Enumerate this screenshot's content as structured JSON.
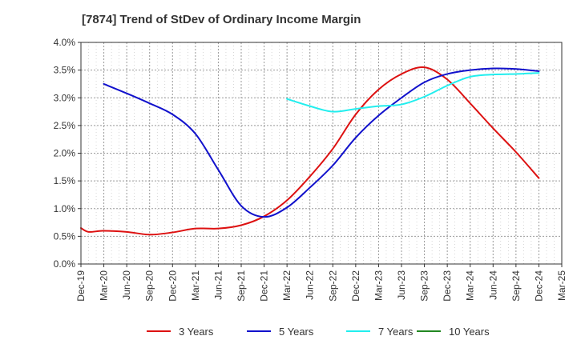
{
  "chart_data": {
    "type": "line",
    "title": "[7874]  Trend of StDev of Ordinary Income Margin",
    "xlabel": "",
    "ylabel": "",
    "ylim": [
      0,
      4.0
    ],
    "y_ticks": [
      "0.0%",
      "0.5%",
      "1.0%",
      "1.5%",
      "2.0%",
      "2.5%",
      "3.0%",
      "3.5%",
      "4.0%"
    ],
    "x_ticks": [
      "Dec-19",
      "Mar-20",
      "Jun-20",
      "Sep-20",
      "Dec-20",
      "Mar-21",
      "Jun-21",
      "Sep-21",
      "Dec-21",
      "Mar-22",
      "Jun-22",
      "Sep-22",
      "Dec-22",
      "Mar-23",
      "Jun-23",
      "Sep-23",
      "Dec-23",
      "Mar-24",
      "Jun-24",
      "Sep-24",
      "Dec-24",
      "Mar-25"
    ],
    "grid": true,
    "legend_position": "bottom",
    "series": [
      {
        "name": "3 Years",
        "color": "#dd1111",
        "points": [
          [
            "Dec-19",
            0.65
          ],
          [
            "Jan-20",
            0.58
          ],
          [
            "Mar-20",
            0.6
          ],
          [
            "Jun-20",
            0.58
          ],
          [
            "Sep-20",
            0.53
          ],
          [
            "Dec-20",
            0.57
          ],
          [
            "Mar-21",
            0.64
          ],
          [
            "Jun-21",
            0.64
          ],
          [
            "Sep-21",
            0.7
          ],
          [
            "Dec-21",
            0.86
          ],
          [
            "Mar-22",
            1.15
          ],
          [
            "Jun-22",
            1.58
          ],
          [
            "Sep-22",
            2.08
          ],
          [
            "Dec-22",
            2.7
          ],
          [
            "Mar-23",
            3.15
          ],
          [
            "Jun-23",
            3.43
          ],
          [
            "Sep-23",
            3.55
          ],
          [
            "Dec-23",
            3.33
          ],
          [
            "Mar-24",
            2.9
          ],
          [
            "Jun-24",
            2.45
          ],
          [
            "Sep-24",
            2.02
          ],
          [
            "Dec-24",
            1.55
          ]
        ]
      },
      {
        "name": "5 Years",
        "color": "#1111cc",
        "points": [
          [
            "Mar-20",
            3.25
          ],
          [
            "Jun-20",
            3.08
          ],
          [
            "Sep-20",
            2.9
          ],
          [
            "Dec-20",
            2.7
          ],
          [
            "Mar-21",
            2.35
          ],
          [
            "Jun-21",
            1.7
          ],
          [
            "Sep-21",
            1.05
          ],
          [
            "Dec-21",
            0.85
          ],
          [
            "Mar-22",
            1.02
          ],
          [
            "Jun-22",
            1.38
          ],
          [
            "Sep-22",
            1.78
          ],
          [
            "Dec-22",
            2.28
          ],
          [
            "Mar-23",
            2.68
          ],
          [
            "Jun-23",
            3.0
          ],
          [
            "Sep-23",
            3.28
          ],
          [
            "Dec-23",
            3.43
          ],
          [
            "Mar-24",
            3.5
          ],
          [
            "Jun-24",
            3.53
          ],
          [
            "Sep-24",
            3.52
          ],
          [
            "Dec-24",
            3.48
          ]
        ]
      },
      {
        "name": "7 Years",
        "color": "#22eeee",
        "points": [
          [
            "Mar-22",
            2.98
          ],
          [
            "Jun-22",
            2.85
          ],
          [
            "Sep-22",
            2.75
          ],
          [
            "Dec-22",
            2.8
          ],
          [
            "Mar-23",
            2.85
          ],
          [
            "Jun-23",
            2.88
          ],
          [
            "Sep-23",
            3.02
          ],
          [
            "Dec-23",
            3.22
          ],
          [
            "Mar-24",
            3.38
          ],
          [
            "Jun-24",
            3.42
          ],
          [
            "Sep-24",
            3.43
          ],
          [
            "Dec-24",
            3.45
          ]
        ]
      },
      {
        "name": "10 Years",
        "color": "#228822",
        "points": []
      }
    ]
  }
}
